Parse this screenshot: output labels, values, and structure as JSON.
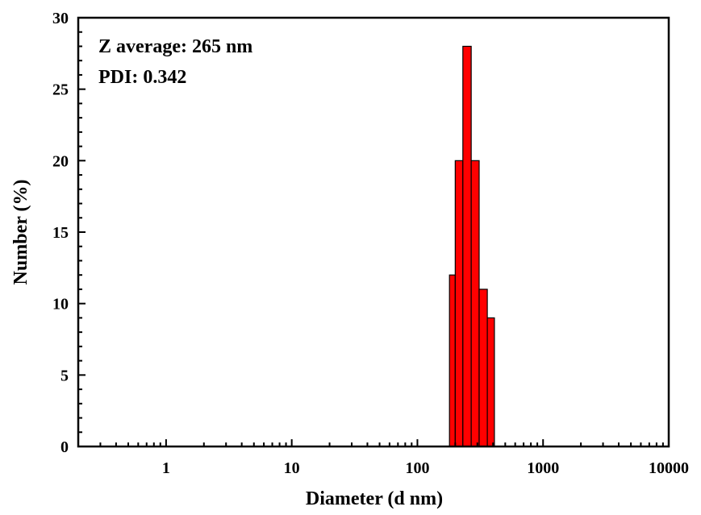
{
  "chart_data": {
    "type": "bar",
    "xscale": "log",
    "xlim": [
      0.2,
      10000
    ],
    "ylim": [
      0,
      30
    ],
    "xlabel": "Diameter (d nm)",
    "ylabel": "Number (%)",
    "xticks": [
      "1",
      "10",
      "100",
      "1000",
      "10000"
    ],
    "yticks": [
      "0",
      "5",
      "10",
      "15",
      "20",
      "25",
      "30"
    ],
    "annotations": [
      "Z average: 265 nm",
      "PDI: 0.342"
    ],
    "bar_color": "#ff0000",
    "bar_edge_color": "#000000",
    "bars": [
      {
        "x_from": 180,
        "x_to": 200,
        "value": 12
      },
      {
        "x_from": 200,
        "x_to": 230,
        "value": 20
      },
      {
        "x_from": 230,
        "x_to": 268,
        "value": 28
      },
      {
        "x_from": 268,
        "x_to": 310,
        "value": 20
      },
      {
        "x_from": 310,
        "x_to": 360,
        "value": 11
      },
      {
        "x_from": 360,
        "x_to": 410,
        "value": 9
      }
    ]
  }
}
